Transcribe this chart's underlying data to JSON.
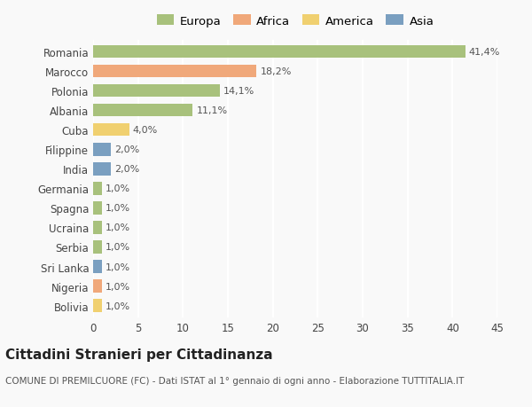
{
  "categories": [
    "Romania",
    "Marocco",
    "Polonia",
    "Albania",
    "Cuba",
    "Filippine",
    "India",
    "Germania",
    "Spagna",
    "Ucraina",
    "Serbia",
    "Sri Lanka",
    "Nigeria",
    "Bolivia"
  ],
  "values": [
    41.4,
    18.2,
    14.1,
    11.1,
    4.0,
    2.0,
    2.0,
    1.0,
    1.0,
    1.0,
    1.0,
    1.0,
    1.0,
    1.0
  ],
  "labels": [
    "41,4%",
    "18,2%",
    "14,1%",
    "11,1%",
    "4,0%",
    "2,0%",
    "2,0%",
    "1,0%",
    "1,0%",
    "1,0%",
    "1,0%",
    "1,0%",
    "1,0%",
    "1,0%"
  ],
  "continents": [
    "Europa",
    "Africa",
    "Europa",
    "Europa",
    "America",
    "Asia",
    "Asia",
    "Europa",
    "Europa",
    "Europa",
    "Europa",
    "Asia",
    "Africa",
    "America"
  ],
  "continent_colors": {
    "Europa": "#a8c17c",
    "Africa": "#f0a87a",
    "America": "#f0d070",
    "Asia": "#7a9fc0"
  },
  "legend_order": [
    "Europa",
    "Africa",
    "America",
    "Asia"
  ],
  "title": "Cittadini Stranieri per Cittadinanza",
  "subtitle": "COMUNE DI PREMILCUORE (FC) - Dati ISTAT al 1° gennaio di ogni anno - Elaborazione TUTTITALIA.IT",
  "xlim": [
    0,
    45
  ],
  "xticks": [
    0,
    5,
    10,
    15,
    20,
    25,
    30,
    35,
    40,
    45
  ],
  "background_color": "#f9f9f9",
  "grid_color": "#ffffff",
  "bar_height": 0.65,
  "label_fontsize": 8.0,
  "tick_fontsize": 8.5,
  "legend_fontsize": 9.5,
  "title_fontsize": 11,
  "subtitle_fontsize": 7.5
}
